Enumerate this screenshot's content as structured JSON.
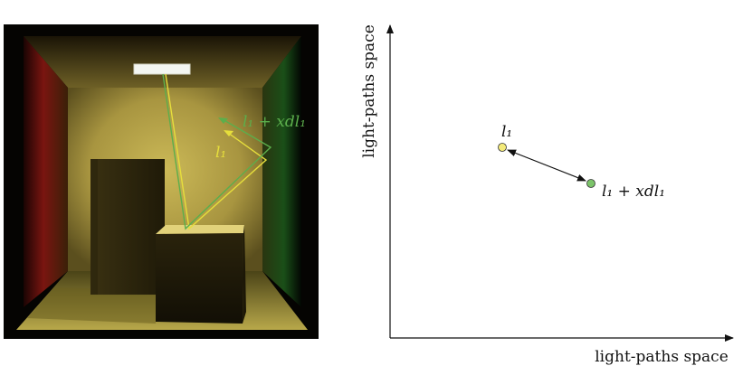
{
  "scene": {
    "green_label": "l₁ + xdl₁",
    "yellow_label": "l₁",
    "colors": {
      "wall_left": "#8a1a14",
      "wall_right": "#123d14",
      "back_wall": "#b9a548",
      "floor": "#9e8f3a",
      "light": "#f4f6f2",
      "path_yellow": "#e6de3c",
      "path_green": "#5cae4c"
    }
  },
  "plot": {
    "y_axis_label": "light-paths space",
    "x_axis_label": "light-paths space",
    "point_a_label": "l₁",
    "point_b_label": "l₁ + xdl₁",
    "colors": {
      "point_a": "#f3ea7a",
      "point_b": "#7cc46a",
      "axis": "#111111"
    }
  }
}
